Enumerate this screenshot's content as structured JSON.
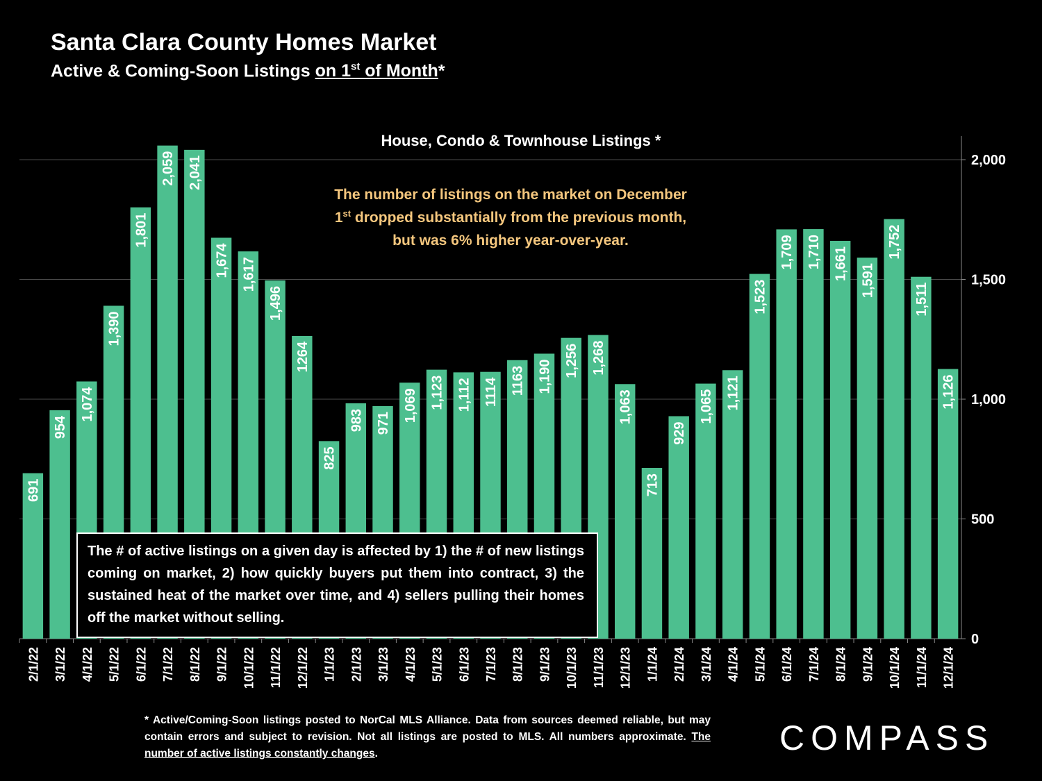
{
  "header": {
    "title": "Santa Clara County Homes Market",
    "subtitle_main": "Active & Coming-Soon Listings ",
    "subtitle_underlined_pre": "on 1",
    "subtitle_sup": "st",
    "subtitle_underlined_post": " of Month",
    "subtitle_suffix": "*"
  },
  "annotation": {
    "line1": "The number of listings on the market on December",
    "line2_pre": "1",
    "line2_sup": "st",
    "line2_post": " dropped substantially from the previous month,",
    "line3": "but was 6% higher year-over-year.",
    "color": "#f5c77e"
  },
  "info_box": {
    "text": "The # of active listings on a given day is affected by 1) the # of new listings coming on market, 2) how quickly buyers put them into contract, 3) the sustained heat of the market over time, and 4) sellers pulling their homes off the market without selling."
  },
  "footnote": {
    "text": "* Active/Coming-Soon listings posted to NorCal MLS Alliance.  Data from sources deemed reliable, but may contain errors and subject to revision.  Not all listings are posted to MLS. All numbers approximate. ",
    "underlined": "The number of active listings constantly changes",
    "end": "."
  },
  "logo": {
    "text": "COMPASS"
  },
  "chart_data": {
    "type": "bar",
    "title": "House, Condo & Townhouse Listings *",
    "bar_color": "#4dbf8f",
    "categories": [
      "2/1/22",
      "3/1/22",
      "4/1/22",
      "5/1/22",
      "6/1/22",
      "7/1/22",
      "8/1/22",
      "9/1/22",
      "10/1/22",
      "11/1/22",
      "12/1/22",
      "1/1/23",
      "2/1/23",
      "3/1/23",
      "4/1/23",
      "5/1/23",
      "6/1/23",
      "7/1/23",
      "8/1/23",
      "9/1/23",
      "10/1/23",
      "11/1/23",
      "12/1/23",
      "1/1/24",
      "2/1/24",
      "3/1/24",
      "4/1/24",
      "5/1/24",
      "6/1/24",
      "7/1/24",
      "8/1/24",
      "9/1/24",
      "10/1/24",
      "11/1/24",
      "12/1/24"
    ],
    "values": [
      691,
      954,
      1074,
      1390,
      1801,
      2059,
      2041,
      1674,
      1617,
      1496,
      1264,
      825,
      983,
      971,
      1069,
      1123,
      1112,
      1114,
      1163,
      1190,
      1256,
      1268,
      1063,
      713,
      929,
      1065,
      1121,
      1523,
      1709,
      1710,
      1661,
      1591,
      1752,
      1511,
      1126
    ],
    "labels": [
      "691",
      "954",
      "1,074",
      "1,390",
      "1,801",
      "2,059",
      "2,041",
      "1,674",
      "1,617",
      "1,496",
      "1264",
      "825",
      "983",
      "971",
      "1,069",
      "1,123",
      "1,112",
      "1114",
      "1163",
      "1,190",
      "1,256",
      "1,268",
      "1,063",
      "713",
      "929",
      "1,065",
      "1,121",
      "1,523",
      "1,709",
      "1,710",
      "1,661",
      "1,591",
      "1,752",
      "1,511",
      "1,126"
    ],
    "y_ticks": [
      0,
      500,
      1000,
      1500,
      2000
    ],
    "y_tick_labels": [
      "0",
      "500",
      "1,000",
      "1,500",
      "2,000"
    ],
    "ylim": [
      0,
      2000
    ],
    "y_axis_side": "right",
    "grid": true
  }
}
